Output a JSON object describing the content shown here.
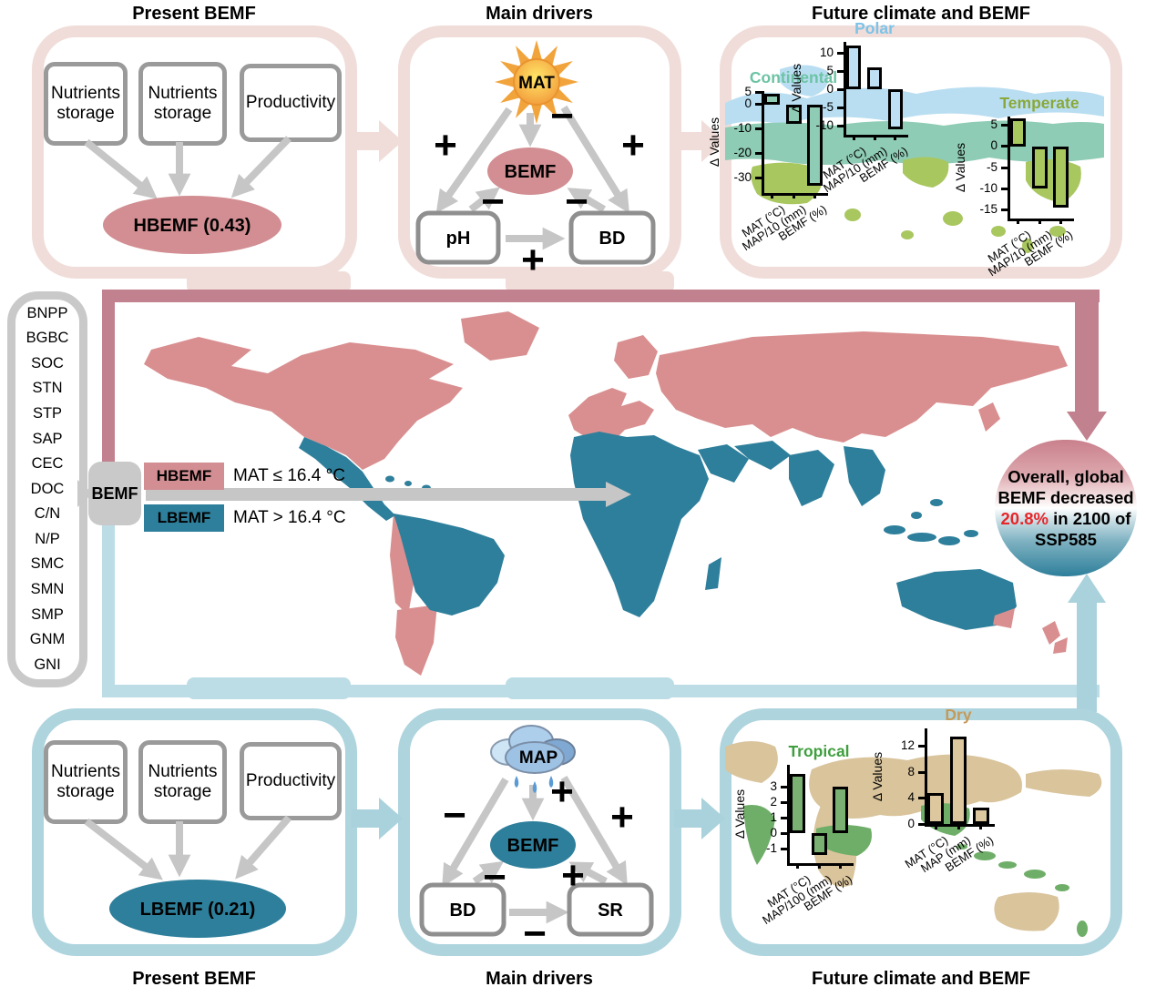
{
  "colors": {
    "rose_band": "#c2818e",
    "light_pink": "#f0ddd9",
    "pink_fill": "#d28e92",
    "map_pink": "#d98f90",
    "teal_fill": "#2e7f9b",
    "blue_frame": "#bcdde6",
    "blue_panel": "#aed4de",
    "blue_arrow": "#a9d2dc",
    "gray_border": "#9a9a9a",
    "gray_arrow": "#c6c6c6",
    "gray_box": "#c9c9c9",
    "highlight_red": "#e8262a"
  },
  "top_row": {
    "present": {
      "title": "Present BEMF",
      "boxes": [
        "Nutrients storage",
        "Nutrients storage",
        "Productivity"
      ],
      "result": "HBEMF (0.43)"
    },
    "drivers": {
      "title": "Main drivers",
      "climate": "MAT",
      "center": "BEMF",
      "box_left": "pH",
      "box_right": "BD",
      "signs": {
        "to_left": "+",
        "to_center": "−",
        "to_right": "+",
        "left_center": "−",
        "right_center": "−",
        "left_right": "+"
      }
    },
    "future": {
      "title": "Future climate and BEMF"
    }
  },
  "bottom_row": {
    "present": {
      "title": "Present BEMF",
      "boxes": [
        "Nutrients storage",
        "Nutrients storage",
        "Productivity"
      ],
      "result": "LBEMF (0.21)"
    },
    "drivers": {
      "title": "Main drivers",
      "climate": "MAP",
      "center": "BEMF",
      "box_left": "BD",
      "box_right": "SR",
      "signs": {
        "to_left": "−",
        "to_center": "+",
        "to_right": "+",
        "left_center": "−",
        "right_center": "+",
        "left_right": "−"
      }
    },
    "future": {
      "title": "Future climate and BEMF"
    }
  },
  "map_section": {
    "variables": [
      "BNPP",
      "BGBC",
      "SOC",
      "STN",
      "STP",
      "SAP",
      "CEC",
      "DOC",
      "C/N",
      "N/P",
      "SMC",
      "SMN",
      "SMP",
      "GNM",
      "GNI"
    ],
    "bemf_label": "BEMF",
    "legend": [
      {
        "label": "HBEMF",
        "condition": "MAT ≤ 16.4 °C"
      },
      {
        "label": "LBEMF",
        "condition": "MAT > 16.4 °C"
      }
    ],
    "summary": {
      "line1": "Overall, global",
      "line2": "BEMF decreased",
      "highlight": "20.8%",
      "line3_rest": " in 2100 of",
      "line4": "SSP585"
    }
  },
  "chart_data": [
    {
      "type": "bar",
      "name": "Continental",
      "title_color": "#6cc3a4",
      "bar_color": "#8fccb5",
      "categories": [
        "MAT (°C)",
        "MAP/10 (mm)",
        "BEMF (%)"
      ],
      "values": [
        4.5,
        -8,
        -33
      ],
      "ylabel": "Δ Values",
      "yticks": [
        5,
        0,
        -10,
        -20,
        -30
      ],
      "ylim": [
        -36,
        5.5
      ],
      "grid": false,
      "legend_position": "none"
    },
    {
      "type": "bar",
      "name": "Polar",
      "title_color": "#7cc3e8",
      "bar_color": "#bfe0f4",
      "categories": [
        "MAT (°C)",
        "MAP/10 (mm)",
        "BEMF (%)"
      ],
      "values": [
        12,
        6,
        -11
      ],
      "ylabel": "Δ Values",
      "yticks": [
        10,
        5,
        0,
        -5,
        -10
      ],
      "ylim": [
        -12.5,
        13
      ],
      "grid": false,
      "legend_position": "none"
    },
    {
      "type": "bar",
      "name": "Temperate",
      "title_color": "#8aa83a",
      "bar_color": "#a9c75f",
      "categories": [
        "MAT (°C)",
        "MAP/10 (mm)",
        "BEMF (%)"
      ],
      "values": [
        6.5,
        -10,
        -14.5
      ],
      "ylabel": "Δ Values",
      "yticks": [
        5,
        0,
        -5,
        -10,
        -15
      ],
      "ylim": [
        -17,
        7
      ],
      "grid": false,
      "legend_position": "none"
    },
    {
      "type": "bar",
      "name": "Tropical",
      "title_color": "#3f9e3f",
      "bar_color": "#7ab173",
      "categories": [
        "MAT (°C)",
        "MAP/100 (mm)",
        "BEMF (%)"
      ],
      "values": [
        3.8,
        -1.4,
        3.0
      ],
      "ylabel": "Δ Values",
      "yticks": [
        3,
        2,
        1,
        0,
        -1
      ],
      "ylim": [
        -1.9,
        4.4
      ],
      "grid": false,
      "legend_position": "none"
    },
    {
      "type": "bar",
      "name": "Dry",
      "title_color": "#c49a5a",
      "bar_color": "#ddc79e",
      "categories": [
        "MAT (°C)",
        "MAP (mm)",
        "BEMF (%)"
      ],
      "values": [
        4.8,
        13.6,
        2.6
      ],
      "ylabel": "Δ Values",
      "yticks": [
        12,
        8,
        4,
        0
      ],
      "ylim": [
        0,
        14.8
      ],
      "grid": false,
      "legend_position": "none"
    }
  ]
}
